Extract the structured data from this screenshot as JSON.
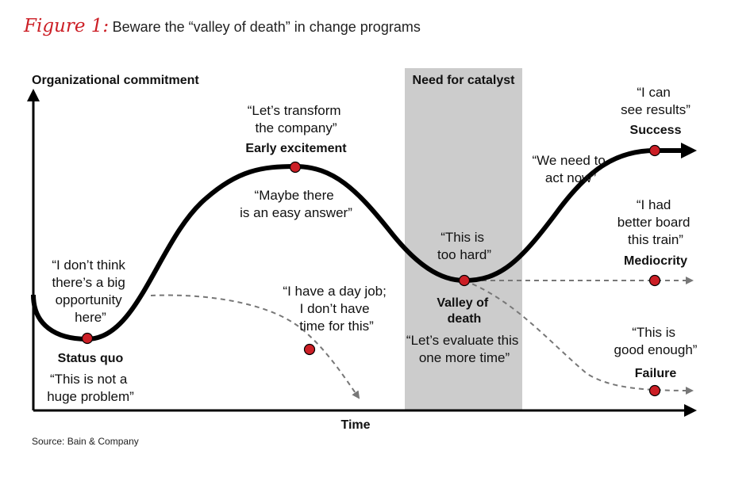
{
  "figure": {
    "label": "Figure 1:",
    "title": "Beware the “valley of death” in change programs"
  },
  "axes": {
    "y_label": "Organizational commitment",
    "x_label": "Time"
  },
  "zone_label": "Need for catalyst",
  "stages": {
    "status_quo": {
      "name": "Status quo",
      "quote_above": [
        "“I don’t think",
        "there’s a big",
        "opportunity",
        "here”"
      ],
      "quote_below": [
        "“This is not a",
        "huge problem”"
      ]
    },
    "early_excitement": {
      "name": "Early excitement",
      "quote_above": [
        "“Let’s transform",
        "the company”"
      ],
      "quote_below": [
        "“Maybe there",
        "is an easy answer”"
      ]
    },
    "valley_of_death": {
      "name": [
        "Valley of",
        "death"
      ],
      "quote_above": [
        "“This is",
        "too hard”"
      ],
      "quote_below": [
        "“Let’s evaluate this",
        "one more time”"
      ]
    },
    "day_job": {
      "quote": [
        "“I have a day job;",
        "I don’t have",
        "time for this”"
      ]
    },
    "act_now": {
      "quote": [
        "“We need to",
        "act now”"
      ]
    },
    "success": {
      "name": "Success",
      "quote": [
        "“I can",
        "see results”"
      ]
    },
    "mediocrity": {
      "name": "Mediocrity",
      "quote": [
        "“I had",
        "better board",
        "this train”"
      ]
    },
    "failure": {
      "name": "Failure",
      "quote": [
        "“This is",
        "good enough”"
      ]
    }
  },
  "source": "Source: Bain & Company",
  "colors": {
    "accent": "#cc1f26",
    "curve": "#000000",
    "dashed": "#777777",
    "zone": "#cccccc"
  }
}
